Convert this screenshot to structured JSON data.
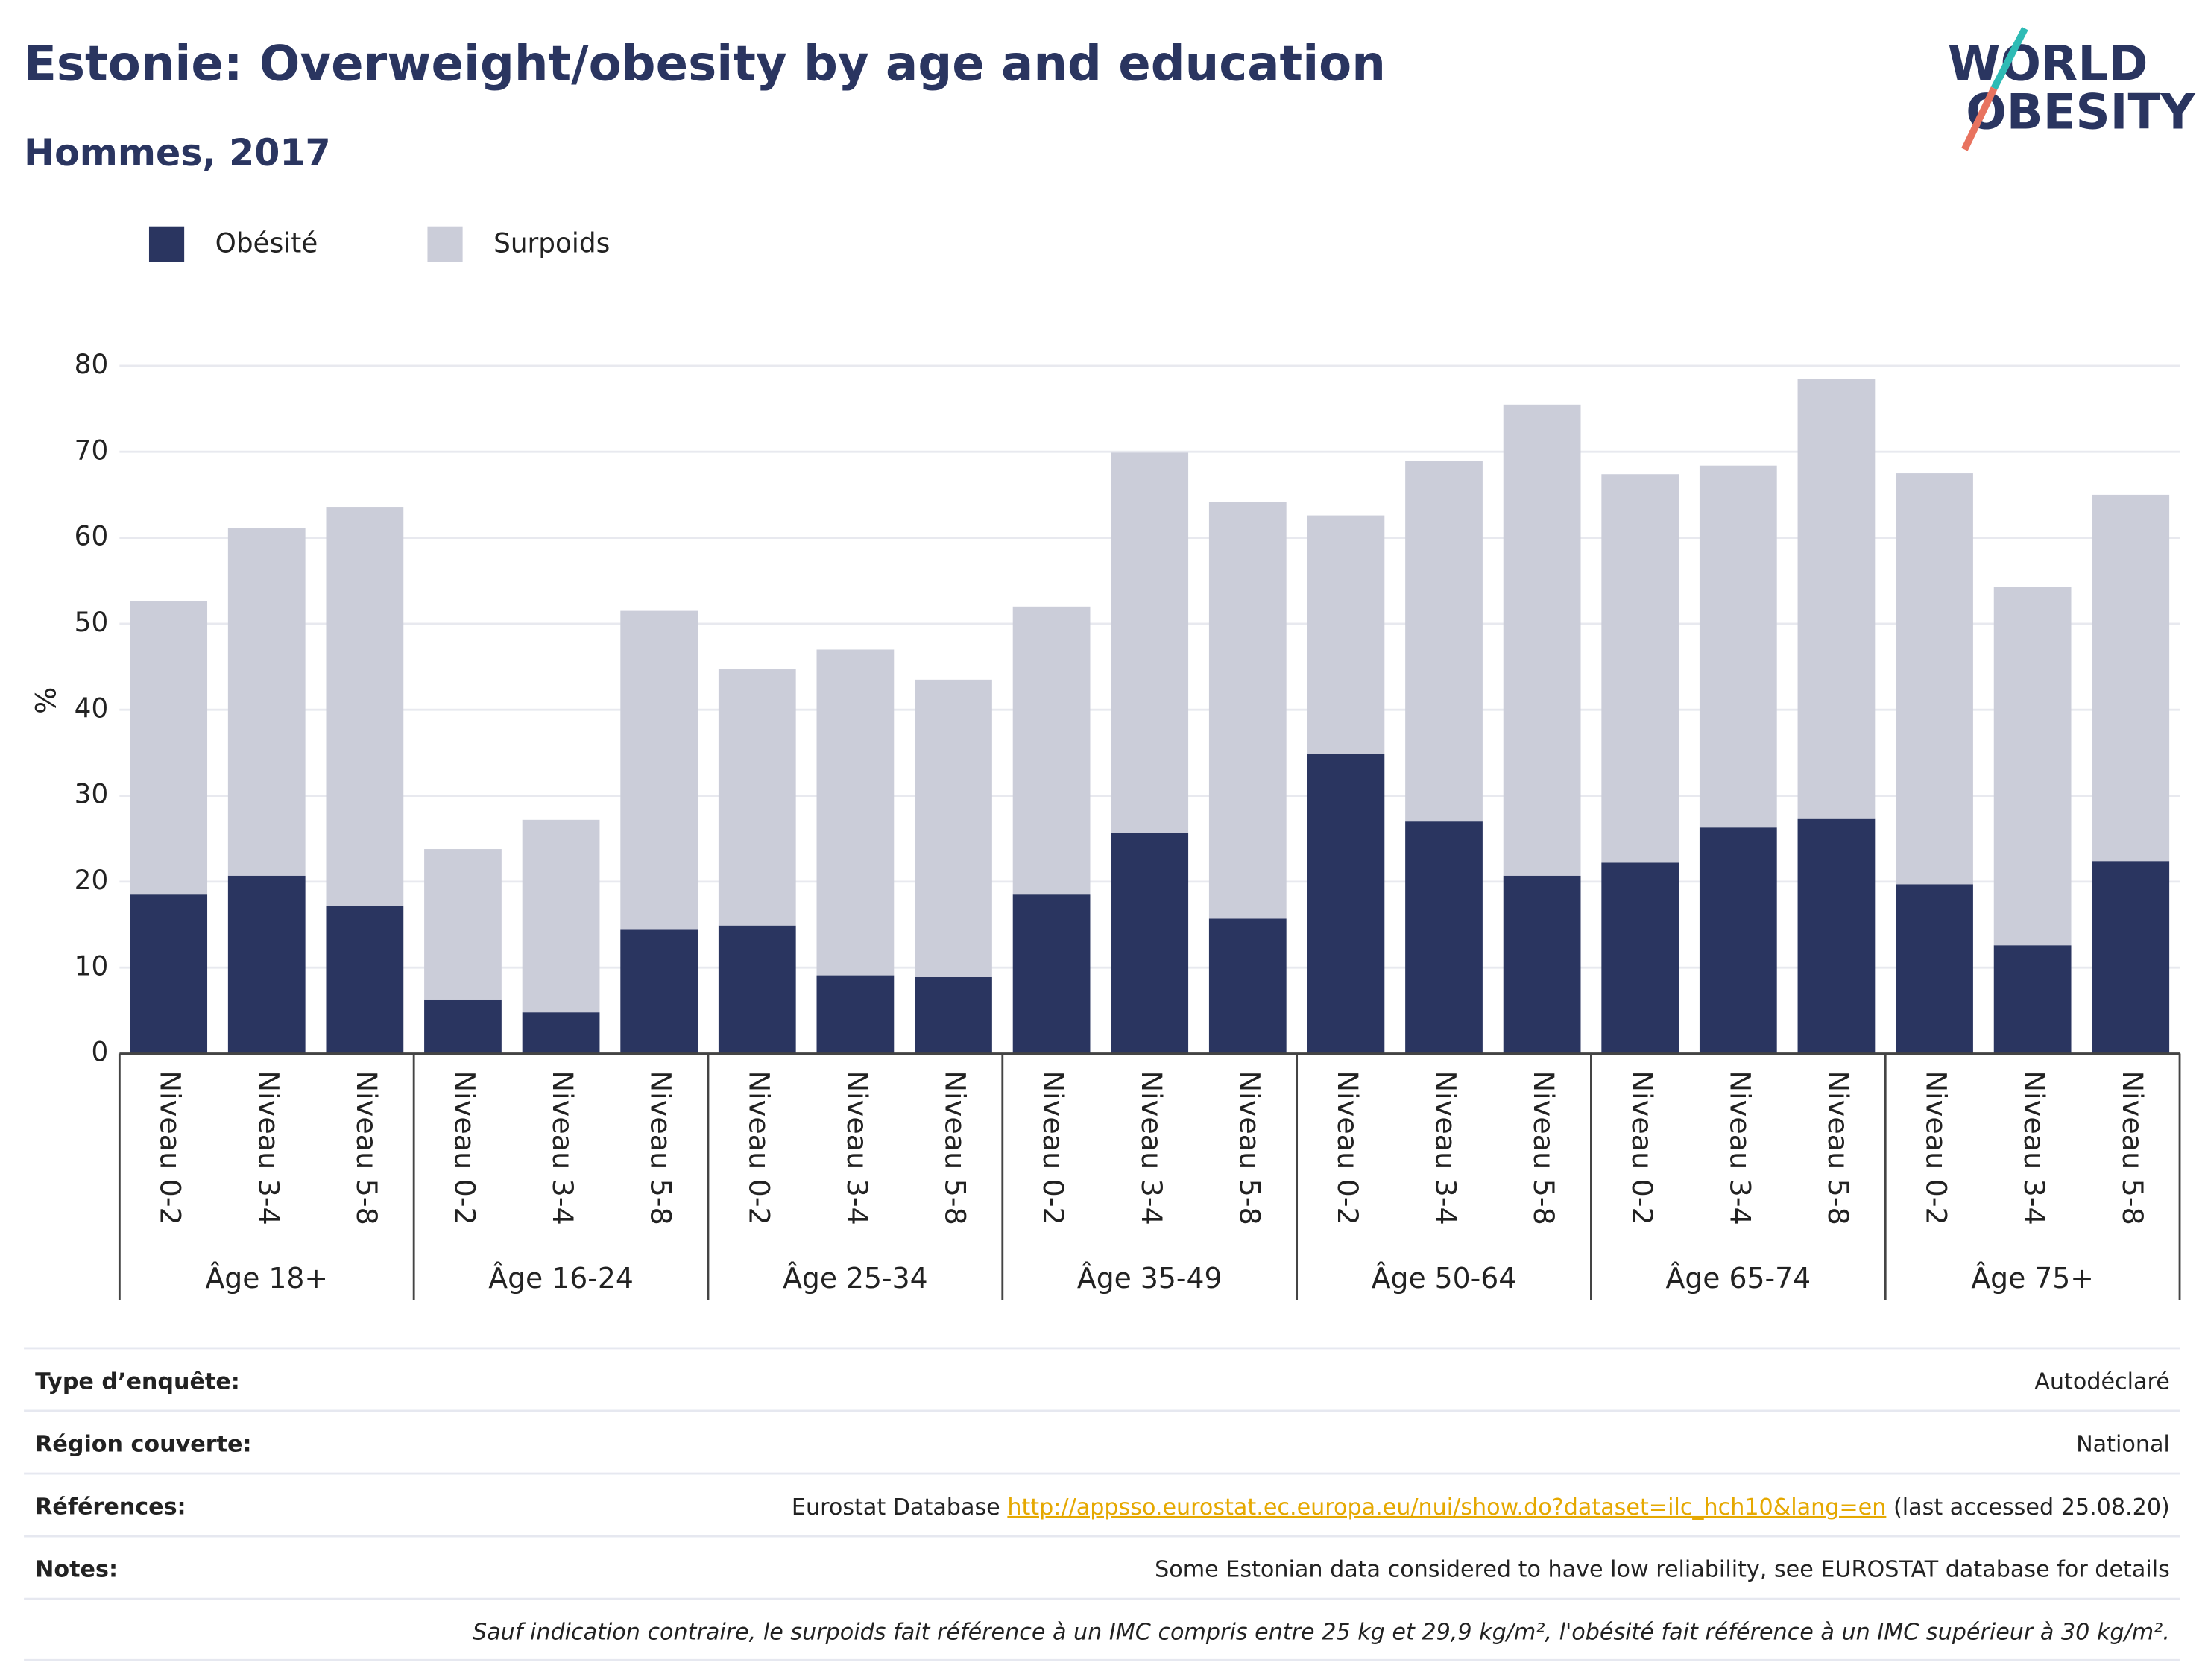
{
  "chart_data": {
    "type": "stacked-bar",
    "title": "Estonie: Overweight/obesity by age and education",
    "subtitle": "Hommes, 2017",
    "y_label": "%",
    "groups": [
      "Âge 18+",
      "Âge 16-24",
      "Âge 25-34",
      "Âge 35-49",
      "Âge 50-64",
      "Âge 65-74",
      "Âge 75+"
    ],
    "categories": [
      "Niveau 0-2",
      "Niveau 3-4",
      "Niveau 5-8",
      "Niveau 0-2",
      "Niveau 3-4",
      "Niveau 5-8",
      "Niveau 0-2",
      "Niveau 3-4",
      "Niveau 5-8",
      "Niveau 0-2",
      "Niveau 3-4",
      "Niveau 5-8",
      "Niveau 0-2",
      "Niveau 3-4",
      "Niveau 5-8",
      "Niveau 0-2",
      "Niveau 3-4",
      "Niveau 5-8",
      "Niveau 0-2",
      "Niveau 3-4",
      "Niveau 5-8"
    ],
    "series": [
      {
        "name": "Obésité",
        "color": "#2a3560",
        "values": [
          18.5,
          20.7,
          17.2,
          6.3,
          4.8,
          14.4,
          14.9,
          9.1,
          8.9,
          18.5,
          25.7,
          15.7,
          34.9,
          27.0,
          20.7,
          22.2,
          26.3,
          27.3,
          19.7,
          12.6,
          22.4
        ]
      },
      {
        "name": "Surpoids",
        "color": "#cbcdd9",
        "values": [
          34.1,
          40.4,
          46.4,
          17.5,
          22.4,
          37.1,
          29.8,
          37.9,
          34.6,
          33.5,
          44.2,
          48.5,
          27.7,
          41.9,
          54.8,
          45.2,
          42.1,
          51.2,
          47.8,
          41.7,
          42.6
        ]
      }
    ],
    "ylim": [
      0,
      80
    ],
    "yticks": [
      0,
      10,
      20,
      30,
      40,
      50,
      60,
      70,
      80
    ],
    "grid": true,
    "legend": "top-left"
  },
  "logo": {
    "line1": "WORLD",
    "line2": "OBESITY"
  },
  "footer": {
    "survey": {
      "label": "Type d’enquête:",
      "value": "Autodéclaré"
    },
    "region": {
      "label": "Région couverte:",
      "value": "National"
    },
    "references": {
      "label": "Références:",
      "prefix": "Eurostat Database",
      "link": "http://appsso.eurostat.ec.europa.eu/nui/show.do?dataset=ilc_hch10&lang=en",
      "suffix": "(last accessed 25.08.20)"
    },
    "notes": {
      "label": "Notes:",
      "value": "Some Estonian data considered to have low reliability, see EUROSTAT database for details"
    },
    "definition": "Sauf indication contraire, le surpoids fait référence à un IMC compris entre 25 kg et 29,9 kg/m², l'obésité fait référence à un IMC supérieur à 30 kg/m²."
  }
}
